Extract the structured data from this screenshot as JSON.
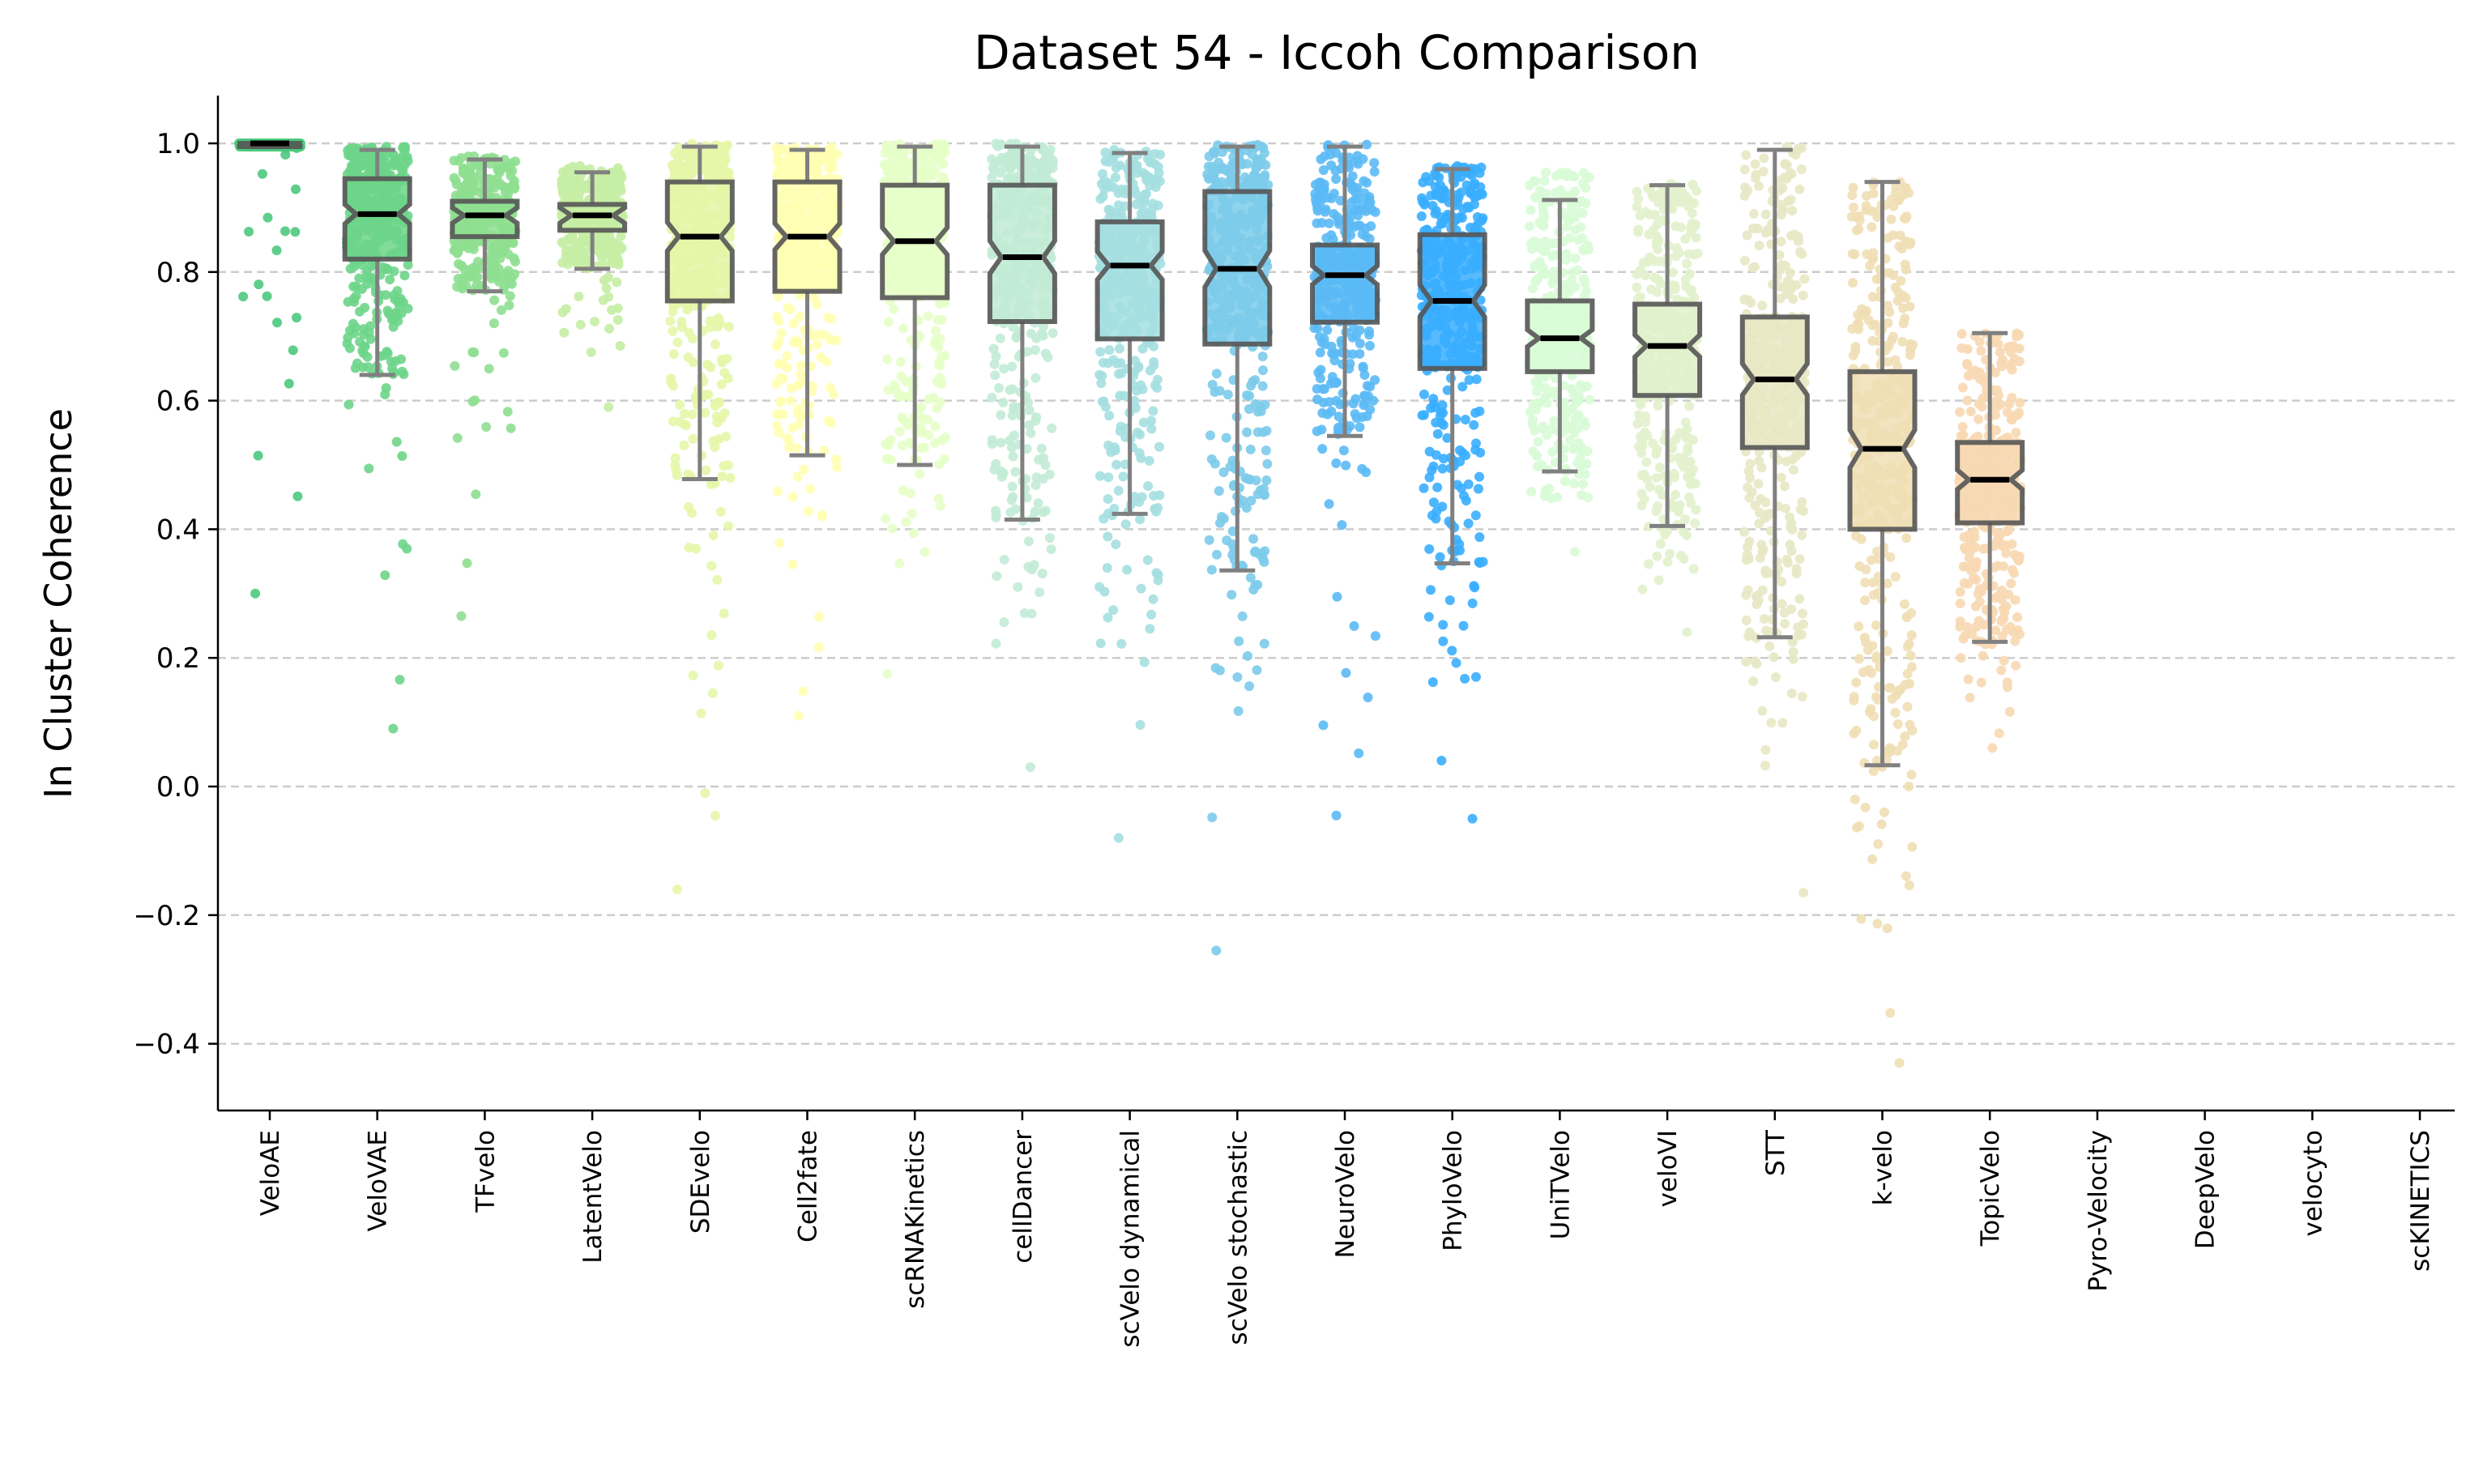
{
  "chart_data": {
    "type": "box",
    "title": "Dataset 54 - Iccoh Comparison",
    "xlabel": "",
    "ylabel": "In Cluster Coherence",
    "ylim": [
      -0.5,
      1.07
    ],
    "yticks": [
      -0.4,
      -0.2,
      0.0,
      0.2,
      0.4,
      0.6,
      0.8,
      1.0
    ],
    "ytick_labels": [
      "−0.4",
      "−0.2",
      "0.0",
      "0.2",
      "0.4",
      "0.6",
      "0.8",
      "1.0"
    ],
    "grid": "horizontal dashed",
    "categories": [
      "VeloAE",
      "VeloVAE",
      "TFvelo",
      "LatentVelo",
      "SDEvelo",
      "Cell2fate",
      "scRNAKinetics",
      "cellDancer",
      "scVelo dynamical",
      "scVelo stochastic",
      "NeuroVelo",
      "PhyloVelo",
      "UniTVelo",
      "veloVI",
      "STT",
      "k-velo",
      "TopicVelo",
      "Pyro-Velocity",
      "DeepVelo",
      "velocyto",
      "scKINETICS"
    ],
    "series": [
      {
        "name": "VeloAE",
        "color": "#4dc97d",
        "whislo": 0.995,
        "q1": 0.995,
        "med": 1.0,
        "q3": 1.0,
        "whishi": 1.0,
        "min": 0.3,
        "max": 1.0
      },
      {
        "name": "VeloVAE",
        "color": "#6dd58a",
        "whislo": 0.64,
        "q1": 0.82,
        "med": 0.89,
        "q3": 0.945,
        "whishi": 0.99,
        "min": 0.09,
        "max": 0.995
      },
      {
        "name": "TFvelo",
        "color": "#8fdf91",
        "whislo": 0.77,
        "q1": 0.855,
        "med": 0.888,
        "q3": 0.91,
        "whishi": 0.975,
        "min": 0.265,
        "max": 0.98
      },
      {
        "name": "LatentVelo",
        "color": "#c5eda4",
        "whislo": 0.805,
        "q1": 0.865,
        "med": 0.888,
        "q3": 0.905,
        "whishi": 0.955,
        "min": 0.59,
        "max": 0.965
      },
      {
        "name": "SDEvelo",
        "color": "#e5f6a8",
        "whislo": 0.478,
        "q1": 0.755,
        "med": 0.855,
        "q3": 0.94,
        "whishi": 0.995,
        "min": -0.16,
        "max": 1.0
      },
      {
        "name": "Cell2fate",
        "color": "#ffffb3",
        "whislo": 0.515,
        "q1": 0.77,
        "med": 0.855,
        "q3": 0.94,
        "whishi": 0.99,
        "min": 0.11,
        "max": 0.995
      },
      {
        "name": "scRNAKinetics",
        "color": "#e6ffc8",
        "whislo": 0.5,
        "q1": 0.76,
        "med": 0.848,
        "q3": 0.935,
        "whishi": 0.995,
        "min": 0.175,
        "max": 1.0
      },
      {
        "name": "cellDancer",
        "color": "#c2ebd6",
        "whislo": 0.415,
        "q1": 0.723,
        "med": 0.823,
        "q3": 0.935,
        "whishi": 0.995,
        "min": 0.03,
        "max": 1.0
      },
      {
        "name": "scVelo dynamical",
        "color": "#a5dfe0",
        "whislo": 0.424,
        "q1": 0.696,
        "med": 0.81,
        "q3": 0.878,
        "whishi": 0.985,
        "min": -0.08,
        "max": 0.99
      },
      {
        "name": "scVelo stochastic",
        "color": "#7ccbea",
        "whislo": 0.336,
        "q1": 0.688,
        "med": 0.805,
        "q3": 0.925,
        "whishi": 0.995,
        "min": -0.255,
        "max": 1.0
      },
      {
        "name": "NeuroVelo",
        "color": "#5bbaf5",
        "whislo": 0.545,
        "q1": 0.722,
        "med": 0.795,
        "q3": 0.842,
        "whishi": 0.995,
        "min": -0.045,
        "max": 1.0
      },
      {
        "name": "PhyloVelo",
        "color": "#3aaeff",
        "whislo": 0.347,
        "q1": 0.65,
        "med": 0.755,
        "q3": 0.858,
        "whishi": 0.96,
        "min": -0.05,
        "max": 0.965
      },
      {
        "name": "UniTVelo",
        "color": "#d8fbd6",
        "whislo": 0.49,
        "q1": 0.645,
        "med": 0.697,
        "q3": 0.755,
        "whishi": 0.912,
        "min": 0.365,
        "max": 0.955
      },
      {
        "name": "veloVI",
        "color": "#e2f1cc",
        "whislo": 0.405,
        "q1": 0.608,
        "med": 0.685,
        "q3": 0.75,
        "whishi": 0.935,
        "min": 0.24,
        "max": 0.94
      },
      {
        "name": "STT",
        "color": "#e7e8c4",
        "whislo": 0.232,
        "q1": 0.527,
        "med": 0.633,
        "q3": 0.73,
        "whishi": 0.99,
        "min": -0.165,
        "max": 0.995
      },
      {
        "name": "k-velo",
        "color": "#f0dfb5",
        "whislo": 0.033,
        "q1": 0.4,
        "med": 0.525,
        "q3": 0.645,
        "whishi": 0.94,
        "min": -0.43,
        "max": 0.94
      },
      {
        "name": "TopicVelo",
        "color": "#f7d8b3",
        "whislo": 0.225,
        "q1": 0.41,
        "med": 0.477,
        "q3": 0.535,
        "whishi": 0.705,
        "min": 0.06,
        "max": 0.705
      }
    ]
  }
}
